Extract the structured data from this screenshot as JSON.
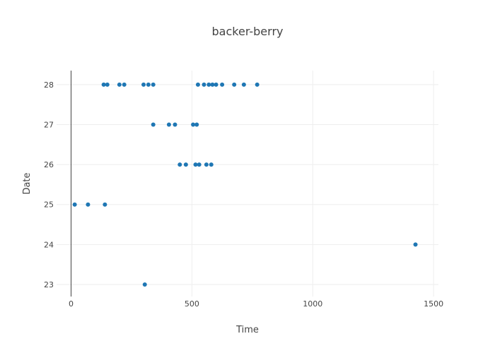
{
  "chart_data": {
    "type": "scatter",
    "title": "backer-berry",
    "xlabel": "Time",
    "ylabel": "Date",
    "xlim": [
      -60,
      1520
    ],
    "ylim": [
      22.7,
      28.35
    ],
    "x_ticks": [
      0,
      500,
      1000,
      1500
    ],
    "x_tick_labels": [
      "0",
      "500",
      "1000",
      "1500"
    ],
    "y_ticks": [
      23,
      24,
      25,
      26,
      27,
      28
    ],
    "y_tick_labels": [
      "23",
      "24",
      "25",
      "26",
      "27",
      "28"
    ],
    "grid": true,
    "marker_color": "#1f77b4",
    "series": [
      {
        "name": "points",
        "x": [
          135,
          150,
          200,
          220,
          300,
          320,
          340,
          525,
          550,
          570,
          585,
          600,
          625,
          675,
          715,
          770,
          340,
          405,
          430,
          505,
          520,
          450,
          475,
          515,
          530,
          560,
          580,
          15,
          70,
          140,
          1425,
          305
        ],
        "y": [
          28,
          28,
          28,
          28,
          28,
          28,
          28,
          28,
          28,
          28,
          28,
          28,
          28,
          28,
          28,
          28,
          27,
          27,
          27,
          27,
          27,
          26,
          26,
          26,
          26,
          26,
          26,
          25,
          25,
          25,
          24,
          23
        ]
      }
    ]
  }
}
